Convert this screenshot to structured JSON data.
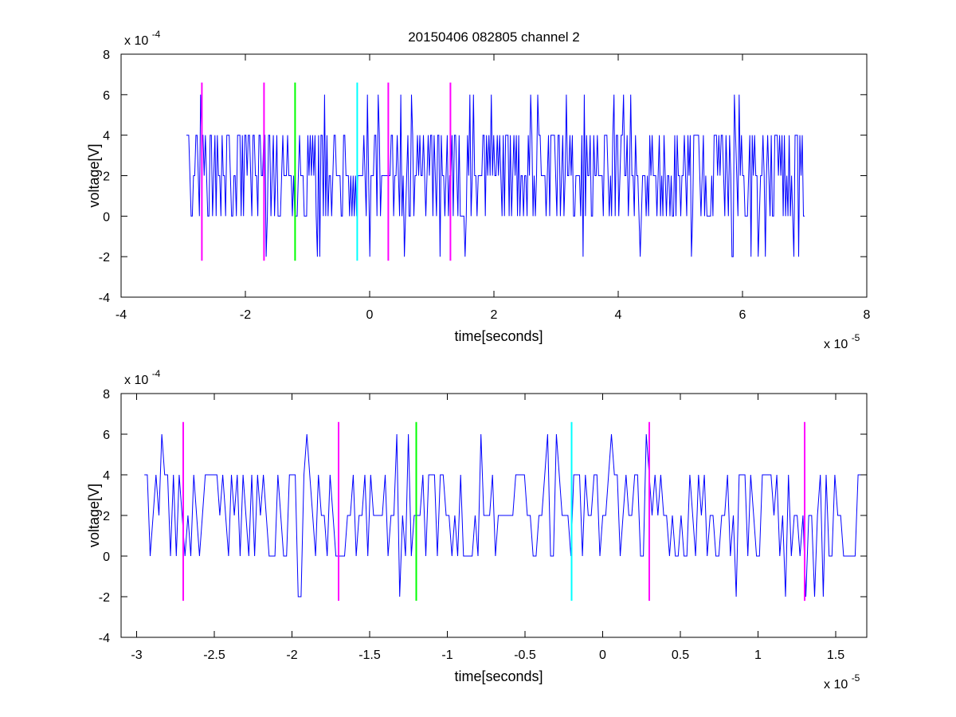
{
  "title": "20150406 082805 channel 2",
  "colors": {
    "signal": "#0000ff",
    "magenta": "#ff00ff",
    "green": "#00ff00",
    "cyan": "#00ffff",
    "axis": "#000000"
  },
  "chart_data": [
    {
      "type": "line",
      "title": "20150406 082805 channel 2",
      "xlabel": "time[seconds]",
      "ylabel": "voltage[V]",
      "x_exponent": "x 10^-5",
      "x_exp_base": "x 10",
      "x_exp_power": "-5",
      "y_exp_base": "x 10",
      "y_exp_power": "-4",
      "xlim": [
        -4,
        8
      ],
      "ylim": [
        -4,
        8
      ],
      "xticks": [
        "-4",
        "-2",
        "0",
        "2",
        "4",
        "6",
        "8"
      ],
      "yticks": [
        "-4",
        "-2",
        "0",
        "2",
        "4",
        "6",
        "8"
      ],
      "signal_x_range": [
        -2.95,
        7.0
      ],
      "signal_levels": [
        -2,
        0,
        2,
        4,
        6
      ],
      "markers": [
        {
          "x": -2.7,
          "color": "magenta"
        },
        {
          "x": -1.7,
          "color": "magenta"
        },
        {
          "x": -1.2,
          "color": "green"
        },
        {
          "x": -0.2,
          "color": "cyan"
        },
        {
          "x": 0.3,
          "color": "magenta"
        },
        {
          "x": 1.3,
          "color": "magenta"
        }
      ],
      "marker_range": [
        -2.2,
        6.6
      ],
      "grid": false
    },
    {
      "type": "line",
      "title": "",
      "xlabel": "time[seconds]",
      "ylabel": "voltage[V]",
      "x_exponent": "x 10^-5",
      "x_exp_base": "x 10",
      "x_exp_power": "-5",
      "y_exp_base": "x 10",
      "y_exp_power": "-4",
      "xlim": [
        -3.1,
        1.7
      ],
      "ylim": [
        -4,
        8
      ],
      "xticks": [
        "-3",
        "-2.5",
        "-2",
        "-1.5",
        "-1",
        "-0.5",
        "0",
        "0.5",
        "1",
        "1.5"
      ],
      "yticks": [
        "-4",
        "-2",
        "0",
        "2",
        "4",
        "6",
        "8"
      ],
      "signal_x_range": [
        -2.95,
        1.7
      ],
      "signal_levels": [
        -2,
        0,
        2,
        4,
        6
      ],
      "markers": [
        {
          "x": -2.7,
          "color": "magenta"
        },
        {
          "x": -1.7,
          "color": "magenta"
        },
        {
          "x": -1.2,
          "color": "green"
        },
        {
          "x": -0.2,
          "color": "cyan"
        },
        {
          "x": 0.3,
          "color": "magenta"
        },
        {
          "x": 1.3,
          "color": "magenta"
        }
      ],
      "marker_range": [
        -2.2,
        6.6
      ],
      "grid": false
    }
  ]
}
